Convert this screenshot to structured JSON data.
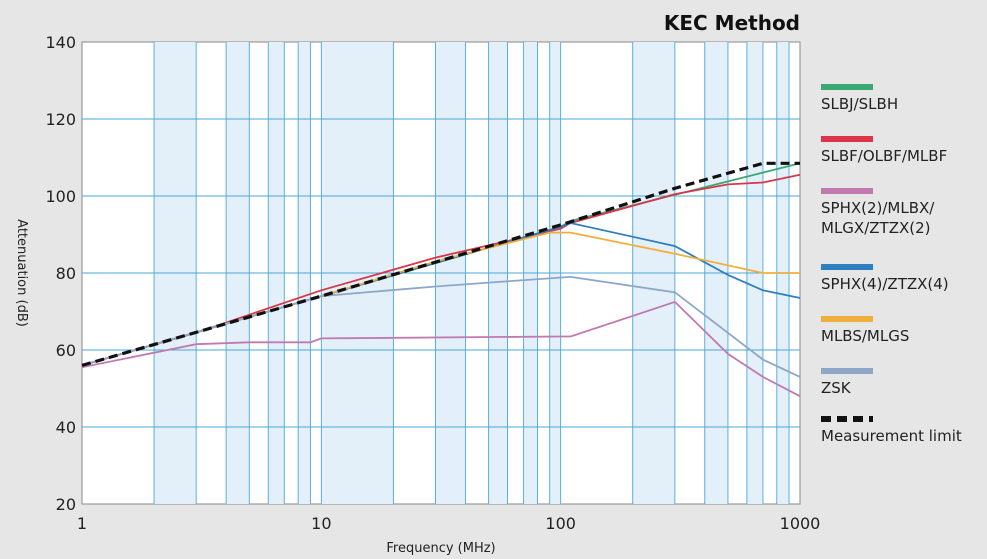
{
  "chart_data": {
    "type": "line",
    "title": "KEC Method",
    "xlabel": "Frequency (MHz)",
    "ylabel": "Attenuation (dB)",
    "xscale": "log",
    "xlim": [
      1,
      1000
    ],
    "ylim": [
      20,
      140
    ],
    "x_ticks": [
      "1",
      "10",
      "100",
      "1000"
    ],
    "y_ticks": [
      "20",
      "40",
      "60",
      "80",
      "100",
      "120",
      "140"
    ],
    "grid": true,
    "legend_position": "right",
    "series": [
      {
        "name": "SLBJ/SLBH",
        "color": "#3aaa72",
        "points": [
          [
            1,
            56
          ],
          [
            10,
            74
          ],
          [
            100,
            92
          ],
          [
            110,
            93.5
          ],
          [
            1000,
            108.5
          ]
        ]
      },
      {
        "name": "SLBF/OLBF/MLBF",
        "color": "#d9364a",
        "points": [
          [
            1,
            56
          ],
          [
            3,
            64.5
          ],
          [
            10,
            75.5
          ],
          [
            30,
            84
          ],
          [
            100,
            91.5
          ],
          [
            110,
            93
          ],
          [
            300,
            100.5
          ],
          [
            500,
            103
          ],
          [
            700,
            103.5
          ],
          [
            1000,
            105.5
          ]
        ]
      },
      {
        "name": "SPHX(2)/MLBX/\nMLGX/ZTZX(2)",
        "color": "#c07ab0",
        "points": [
          [
            1,
            55.5
          ],
          [
            3,
            61.5
          ],
          [
            5,
            62
          ],
          [
            9,
            62
          ],
          [
            10,
            63
          ],
          [
            100,
            63.5
          ],
          [
            110,
            63.5
          ],
          [
            300,
            72.5
          ],
          [
            500,
            59
          ],
          [
            700,
            53
          ],
          [
            1000,
            48
          ]
        ]
      },
      {
        "name": "SPHX(4)/ZTZX(4)",
        "color": "#2e7fc0",
        "points": [
          [
            1,
            56
          ],
          [
            10,
            74
          ],
          [
            100,
            92
          ],
          [
            110,
            93
          ],
          [
            300,
            87
          ],
          [
            500,
            79.5
          ],
          [
            700,
            75.5
          ],
          [
            1000,
            73.5
          ]
        ]
      },
      {
        "name": "MLBS/MLGS",
        "color": "#f0ae3c",
        "points": [
          [
            1,
            56
          ],
          [
            10,
            74
          ],
          [
            30,
            83
          ],
          [
            90,
            90.5
          ],
          [
            110,
            90.5
          ],
          [
            300,
            85
          ],
          [
            700,
            80
          ],
          [
            1000,
            80
          ]
        ]
      },
      {
        "name": "ZSK",
        "color": "#8ea6c8",
        "points": [
          [
            1,
            56
          ],
          [
            10,
            74
          ],
          [
            30,
            76.5
          ],
          [
            50,
            77.5
          ],
          [
            110,
            79
          ],
          [
            300,
            75
          ],
          [
            700,
            57.5
          ],
          [
            1000,
            53
          ]
        ]
      },
      {
        "name": "Measurement limit",
        "color": "#111111",
        "dashed": true,
        "points": [
          [
            1,
            56
          ],
          [
            10,
            74
          ],
          [
            100,
            92.5
          ],
          [
            300,
            102
          ],
          [
            700,
            108.5
          ],
          [
            1000,
            108.5
          ]
        ]
      }
    ]
  }
}
